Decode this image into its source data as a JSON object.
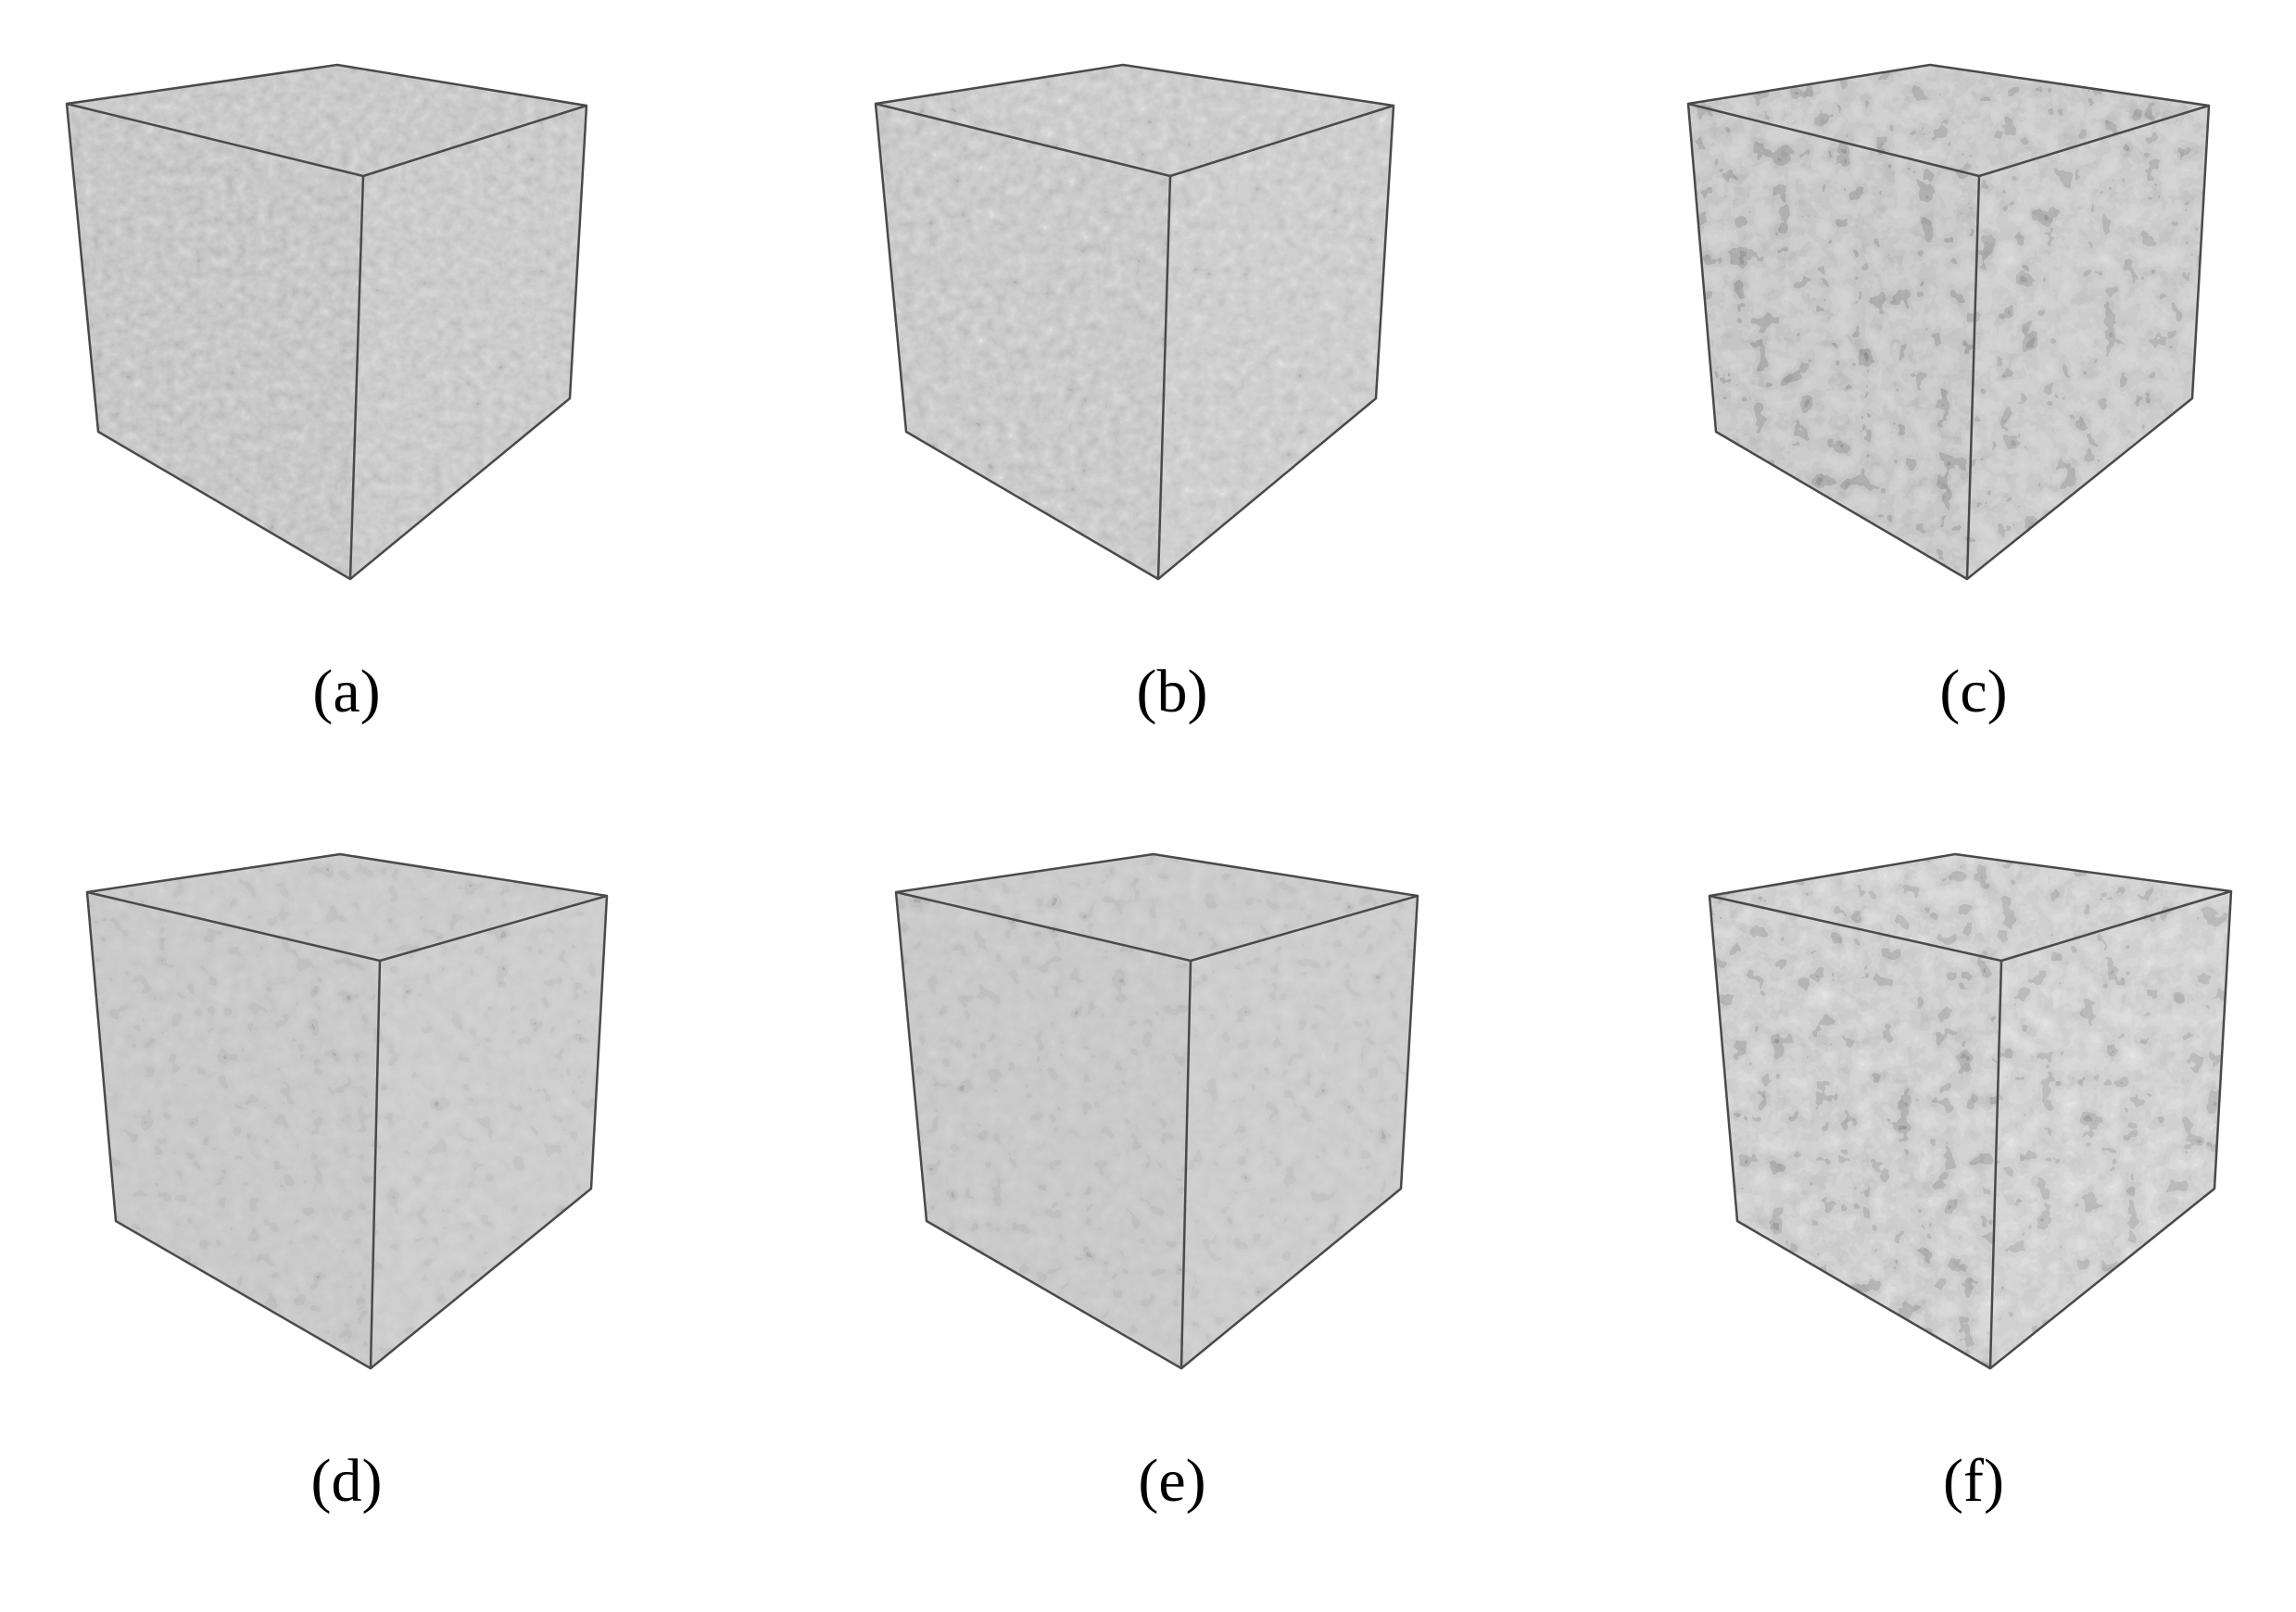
{
  "figure": {
    "panels": [
      {
        "id": "a",
        "caption": "(a)",
        "texture": "fine"
      },
      {
        "id": "b",
        "caption": "(b)",
        "texture": "fine-bright"
      },
      {
        "id": "c",
        "caption": "(c)",
        "texture": "coarse"
      },
      {
        "id": "d",
        "caption": "(d)",
        "texture": "medium"
      },
      {
        "id": "e",
        "caption": "(e)",
        "texture": "medium"
      },
      {
        "id": "f",
        "caption": "(f)",
        "texture": "coarse-bright"
      }
    ],
    "colors": {
      "background": "#ffffff",
      "edge": "#4a4a4a",
      "grain_dark": "#5a5a5a",
      "grain_mid": "#8c8c8c",
      "grain_light": "#b4b4b4"
    }
  }
}
